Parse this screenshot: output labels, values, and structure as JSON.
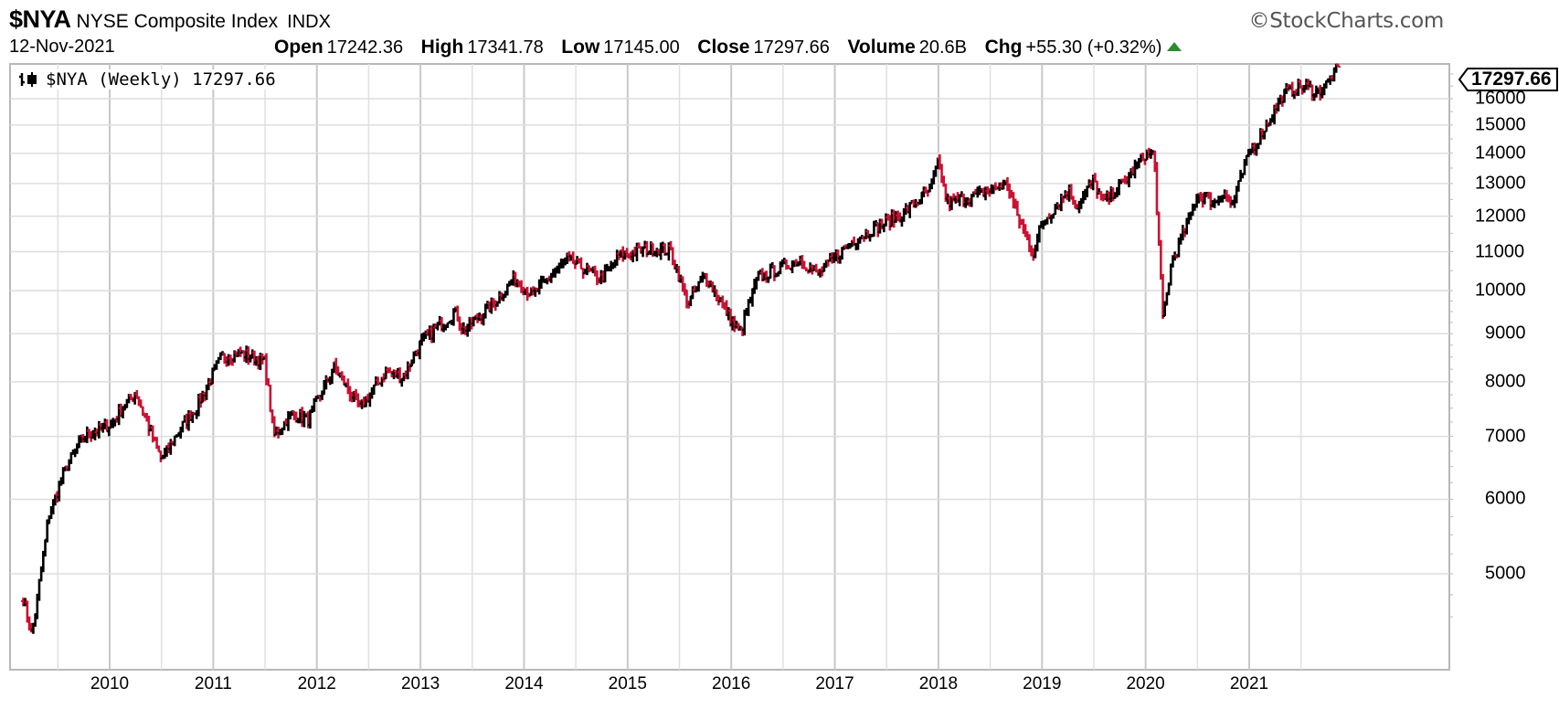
{
  "header": {
    "symbol": "$NYA",
    "name": "NYSE Composite Index",
    "exchange": "INDX",
    "copyright": "©StockCharts.com",
    "date": "12-Nov-2021",
    "open_label": "Open",
    "open_value": "17242.36",
    "high_label": "High",
    "high_value": "17341.78",
    "low_label": "Low",
    "low_value": "17145.00",
    "close_label": "Close",
    "close_value": "17297.66",
    "volume_label": "Volume",
    "volume_value": "20.6B",
    "chg_label": "Chg",
    "chg_value": "+55.30 (+0.32%)"
  },
  "legend": {
    "text": "$NYA (Weekly) 17297.66",
    "icon": "ohlc-bars-icon"
  },
  "last_price_tag": "17297.66",
  "colors": {
    "up_bar": "#000000",
    "down_bar": "#cc1133",
    "grid": "#d4d4d4",
    "axis": "#b8b8b8",
    "up_arrow": "#2e8b2e"
  },
  "chart_data": {
    "type": "line",
    "subtype": "weekly OHLC bars (up=black, down=red)",
    "title": "$NYA NYSE Composite Index INDX",
    "xlabel": "",
    "ylabel": "",
    "y_scale": "log",
    "ylim": [
      4400,
      17600
    ],
    "grid": true,
    "legend_position": "top-left",
    "x_tick_labels": [
      "2010",
      "2011",
      "2012",
      "2013",
      "2014",
      "2015",
      "2016",
      "2017",
      "2018",
      "2019",
      "2020",
      "2021"
    ],
    "y_tick_labels": [
      "16000",
      "15000",
      "14000",
      "13000",
      "12000",
      "11000",
      "10000",
      "9000",
      "8000",
      "7000",
      "6000",
      "5000"
    ],
    "x": [
      "2009-03",
      "2009-04",
      "2009-06",
      "2009-08",
      "2009-10",
      "2010-01",
      "2010-04",
      "2010-07",
      "2010-09",
      "2010-11",
      "2011-02",
      "2011-04",
      "2011-07",
      "2011-08",
      "2011-10",
      "2011-12",
      "2012-03",
      "2012-06",
      "2012-09",
      "2012-11",
      "2013-01",
      "2013-05",
      "2013-06",
      "2013-09",
      "2013-12",
      "2014-02",
      "2014-06",
      "2014-10",
      "2014-12",
      "2015-04",
      "2015-06",
      "2015-08",
      "2015-10",
      "2016-01",
      "2016-02",
      "2016-04",
      "2016-06",
      "2016-09",
      "2016-11",
      "2017-03",
      "2017-06",
      "2017-09",
      "2017-12",
      "2018-01",
      "2018-02",
      "2018-05",
      "2018-09",
      "2018-10",
      "2018-12",
      "2019-01",
      "2019-04",
      "2019-05",
      "2019-07",
      "2019-08",
      "2019-11",
      "2020-01",
      "2020-02",
      "2020-03",
      "2020-04",
      "2020-06",
      "2020-07",
      "2020-09",
      "2020-10",
      "2020-11",
      "2021-01",
      "2021-03",
      "2021-05",
      "2021-07",
      "2021-09",
      "2021-10",
      "2021-11"
    ],
    "values": [
      4700,
      4300,
      5800,
      6500,
      7000,
      7200,
      7800,
      6600,
      7100,
      7500,
      8500,
      8600,
      8400,
      7000,
      7400,
      7300,
      8300,
      7500,
      8200,
      8100,
      8800,
      9500,
      9100,
      9600,
      10300,
      9900,
      10800,
      10300,
      10900,
      11100,
      11000,
      9700,
      10400,
      9300,
      9000,
      10300,
      10500,
      10800,
      10400,
      11300,
      11700,
      12100,
      12800,
      13700,
      12400,
      12600,
      13000,
      12100,
      11000,
      11800,
      12800,
      12300,
      13100,
      12400,
      13200,
      14000,
      13900,
      9300,
      10700,
      11900,
      12700,
      12400,
      12800,
      12300,
      14000,
      15000,
      16200,
      16500,
      16300,
      16600,
      17297.66
    ]
  }
}
